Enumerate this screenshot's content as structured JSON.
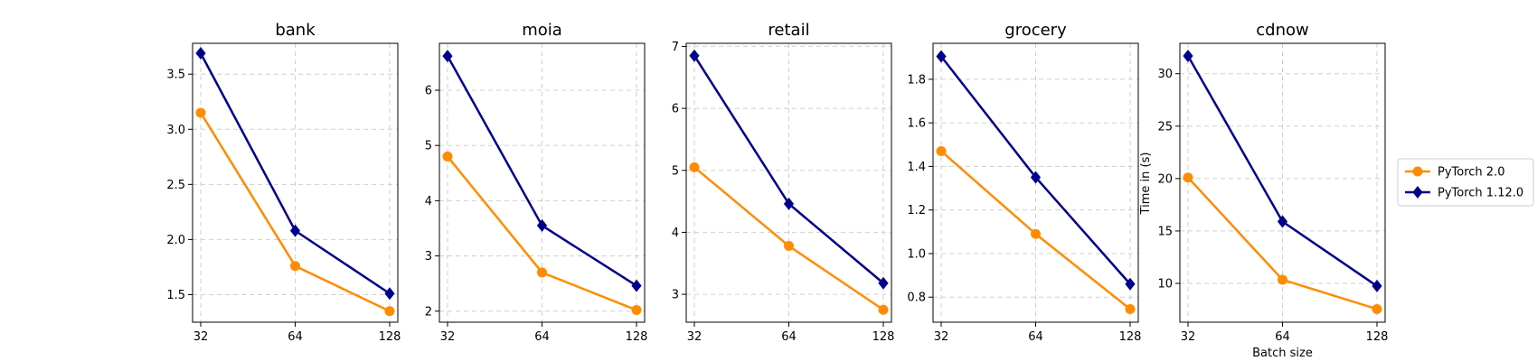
{
  "chart_data": {
    "type": "line",
    "x": [
      32,
      64,
      128
    ],
    "x_ticks": [
      "32",
      "64",
      "128"
    ],
    "xlabel": "Batch size",
    "ylabel": "Time in (s)",
    "grid": true,
    "legend_position": "right",
    "legend": [
      {
        "name": "PyTorch 2.0",
        "color": "#ff8c00",
        "marker": "circle"
      },
      {
        "name": "PyTorch 1.12.0",
        "color": "#00008b",
        "marker": "diamond"
      }
    ],
    "panels": [
      {
        "title": "bank",
        "ylim": [
          1.25,
          3.78
        ],
        "yticks": [
          1.5,
          2.0,
          2.5,
          3.0,
          3.5
        ],
        "ytick_labels": [
          "1.5",
          "2.0",
          "2.5",
          "3.0",
          "3.5"
        ],
        "series": [
          {
            "name": "PyTorch 2.0",
            "values": [
              3.15,
              1.76,
              1.35
            ]
          },
          {
            "name": "PyTorch 1.12.0",
            "values": [
              3.69,
              2.08,
              1.51
            ]
          }
        ]
      },
      {
        "title": "moia",
        "ylim": [
          1.8,
          6.85
        ],
        "yticks": [
          2,
          3,
          4,
          5,
          6
        ],
        "ytick_labels": [
          "2",
          "3",
          "4",
          "5",
          "6"
        ],
        "series": [
          {
            "name": "PyTorch 2.0",
            "values": [
              4.8,
              2.7,
              2.02
            ]
          },
          {
            "name": "PyTorch 1.12.0",
            "values": [
              6.62,
              3.55,
              2.46
            ]
          }
        ]
      },
      {
        "title": "retail",
        "ylim": [
          2.55,
          7.05
        ],
        "yticks": [
          3,
          4,
          5,
          6,
          7
        ],
        "ytick_labels": [
          "3",
          "4",
          "5",
          "6",
          "7"
        ],
        "series": [
          {
            "name": "PyTorch 2.0",
            "values": [
              5.05,
              3.78,
              2.75
            ]
          },
          {
            "name": "PyTorch 1.12.0",
            "values": [
              6.85,
              4.46,
              3.18
            ]
          }
        ]
      },
      {
        "title": "grocery",
        "ylim": [
          0.685,
          1.965
        ],
        "yticks": [
          0.8,
          1.0,
          1.2,
          1.4,
          1.6,
          1.8
        ],
        "ytick_labels": [
          "0.8",
          "1.0",
          "1.2",
          "1.4",
          "1.6",
          "1.8"
        ],
        "series": [
          {
            "name": "PyTorch 2.0",
            "values": [
              1.47,
              1.09,
              0.745
            ]
          },
          {
            "name": "PyTorch 1.12.0",
            "values": [
              1.905,
              1.35,
              0.86
            ]
          }
        ]
      },
      {
        "title": "cdnow",
        "ylim": [
          6.3,
          32.9
        ],
        "yticks": [
          10,
          15,
          20,
          25,
          30
        ],
        "ytick_labels": [
          "10",
          "15",
          "20",
          "25",
          "30"
        ],
        "series": [
          {
            "name": "PyTorch 2.0",
            "values": [
              20.1,
              10.35,
              7.55
            ]
          },
          {
            "name": "PyTorch 1.12.0",
            "values": [
              31.7,
              15.9,
              9.75
            ]
          }
        ]
      }
    ]
  }
}
